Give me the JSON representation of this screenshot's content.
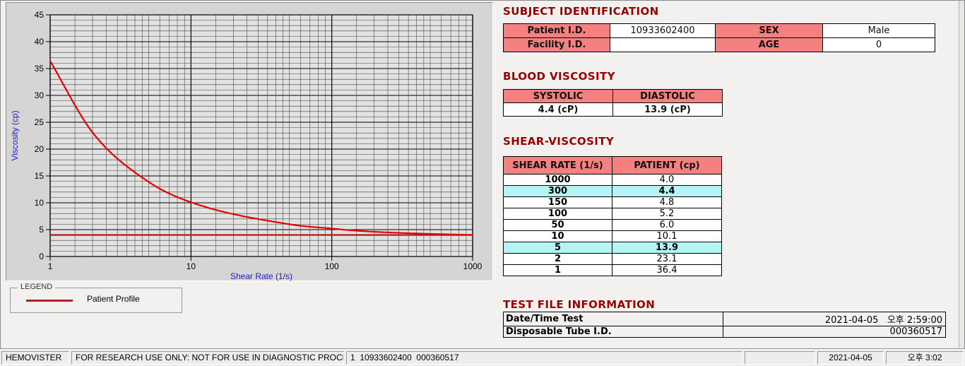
{
  "window": {
    "app_name": "HEMOVISTER"
  },
  "legend": {
    "box_label": "LEGEND",
    "series_label": "Patient Profile",
    "line_color": "#b22222"
  },
  "chart_data": {
    "type": "line",
    "xlabel": "Shear Rate (1/s)",
    "ylabel": "Viscosity (cp)",
    "x_scale": "log",
    "xlim": [
      1,
      1000
    ],
    "ylim": [
      0,
      45
    ],
    "x_ticks": [
      1,
      10,
      100,
      1000
    ],
    "y_major_step": 5,
    "y_minor_step": 1,
    "grid": true,
    "legend_position": "below-left",
    "series": [
      {
        "name": "Patient Profile",
        "color": "#e60000",
        "x": [
          1,
          2,
          5,
          10,
          50,
          100,
          150,
          300,
          1000
        ],
        "y": [
          36.4,
          23.1,
          13.9,
          10.1,
          6.0,
          5.2,
          4.8,
          4.4,
          4.0
        ]
      }
    ],
    "baseline": {
      "y": 4.0,
      "color": "#b22222"
    }
  },
  "sections": {
    "subject": {
      "title": "SUBJECT IDENTIFICATION",
      "fields": [
        {
          "label": "Patient I.D.",
          "value": "10933602400"
        },
        {
          "label": "SEX",
          "value": "Male"
        },
        {
          "label": "Facility I.D.",
          "value": ""
        },
        {
          "label": "AGE",
          "value": "0"
        }
      ]
    },
    "blood": {
      "title": "BLOOD VISCOSITY",
      "headers": [
        "SYSTOLIC",
        "DIASTOLIC"
      ],
      "values": [
        "4.4 (cP)",
        "13.9 (cP)"
      ]
    },
    "shear": {
      "title": "SHEAR-VISCOSITY",
      "headers": [
        "SHEAR RATE (1/s)",
        "PATIENT (cp)"
      ],
      "rows": [
        {
          "rate": "1000",
          "value": "4.0",
          "highlight": false
        },
        {
          "rate": "300",
          "value": "4.4",
          "highlight": true
        },
        {
          "rate": "150",
          "value": "4.8",
          "highlight": false
        },
        {
          "rate": "100",
          "value": "5.2",
          "highlight": false
        },
        {
          "rate": "50",
          "value": "6.0",
          "highlight": false
        },
        {
          "rate": "10",
          "value": "10.1",
          "highlight": false
        },
        {
          "rate": "5",
          "value": "13.9",
          "highlight": true
        },
        {
          "rate": "2",
          "value": "23.1",
          "highlight": false
        },
        {
          "rate": "1",
          "value": "36.4",
          "highlight": false
        }
      ]
    },
    "testfile": {
      "title": "TEST FILE INFORMATION",
      "rows": [
        {
          "label": "Date/Time Test",
          "value": "2021-04-05   오후 2:59:00"
        },
        {
          "label": "Disposable Tube I.D.",
          "value": "000360517"
        }
      ]
    }
  },
  "status_bar": {
    "items": [
      "HEMOVISTER",
      "FOR RESEARCH USE ONLY: NOT FOR USE IN DIAGNOSTIC PROCEDURES",
      "1  10933602400  000360517",
      "",
      "2021-04-05",
      "오후 3:02"
    ]
  },
  "colors": {
    "section_title": "#9a0000",
    "header_fill": "#f58080",
    "highlight_fill": "#b4f4f4",
    "curve": "#e60000",
    "baseline": "#b22222",
    "axis_label": "#2020c0"
  }
}
